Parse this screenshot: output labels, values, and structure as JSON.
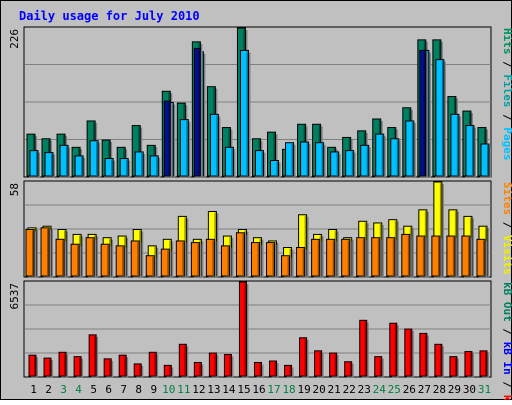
{
  "chart_data": {
    "type": "bar",
    "title": "Daily usage for July 2010",
    "categories": [
      "1",
      "2",
      "3",
      "4",
      "5",
      "6",
      "7",
      "8",
      "9",
      "10",
      "11",
      "12",
      "13",
      "14",
      "15",
      "16",
      "17",
      "18",
      "19",
      "20",
      "21",
      "22",
      "23",
      "24",
      "25",
      "26",
      "27",
      "28",
      "29",
      "30",
      "31"
    ],
    "weekend_days": [
      "3",
      "4",
      "10",
      "11",
      "17",
      "18",
      "24",
      "25",
      "31"
    ],
    "panels": [
      {
        "id": "hits",
        "ylim": [
          0,
          226
        ],
        "ymax_label": "226",
        "axis_labels": [
          {
            "text": "Pages",
            "color": "#00c0ff"
          },
          {
            "text": "Files",
            "color": "#00a0a0"
          },
          {
            "text": "Hits",
            "color": "#009060"
          }
        ],
        "series": [
          {
            "name": "Hits",
            "color": "#008060",
            "values": [
              65,
              58,
              65,
              45,
              85,
              56,
              45,
              78,
              48,
              130,
              112,
              205,
              137,
              75,
              226,
              58,
              68,
              42,
              80,
              80,
              45,
              60,
              70,
              88,
              75,
              105,
              208,
              208,
              122,
              100,
              75
            ]
          },
          {
            "name": "Files",
            "color": "#00c0ff",
            "values": [
              40,
              37,
              48,
              32,
              55,
              28,
              28,
              38,
              32,
              113,
              87,
              190,
              95,
              45,
              192,
              40,
              25,
              52,
              53,
              52,
              38,
              40,
              48,
              65,
              58,
              85,
              192,
              178,
              95,
              78,
              50
            ]
          },
          {
            "name": "Pages",
            "color": "#001090",
            "values": [
              0,
              0,
              0,
              0,
              0,
              0,
              0,
              0,
              0,
              115,
              0,
              195,
              0,
              0,
              0,
              0,
              0,
              0,
              0,
              0,
              0,
              0,
              0,
              0,
              0,
              0,
              192,
              0,
              0,
              0,
              0
            ]
          }
        ]
      },
      {
        "id": "visits",
        "ylim": [
          0,
          58
        ],
        "ymax_label": "58",
        "axis_labels": [
          {
            "text": "Visits",
            "color": "#f0f000"
          },
          {
            "text": "Sites",
            "color": "#ff8000"
          }
        ],
        "series": [
          {
            "name": "Visits",
            "color": "#ffff00",
            "values": [
              30,
              31,
              29,
              26,
              26,
              24,
              25,
              29,
              19,
              23,
              37,
              23,
              40,
              25,
              29,
              24,
              22,
              18,
              38,
              26,
              29,
              24,
              34,
              33,
              35,
              31,
              41,
              58,
              41,
              37,
              31
            ]
          },
          {
            "name": "Sites",
            "color": "#ff8000",
            "values": [
              29,
              30,
              23,
              20,
              24,
              20,
              19,
              22,
              13,
              17,
              22,
              21,
              23,
              19,
              27,
              21,
              21,
              13,
              18,
              23,
              23,
              23,
              24,
              24,
              24,
              26,
              25,
              25,
              25,
              25,
              23
            ]
          }
        ]
      },
      {
        "id": "kbytes",
        "ylim": [
          0,
          6537
        ],
        "ymax_label": "6537",
        "axis_labels": [
          {
            "text": "kB F",
            "color": "#ff0000"
          },
          {
            "text": "kB In",
            "color": "#0000ff"
          },
          {
            "text": "kB Out",
            "color": "#008060"
          }
        ],
        "series": [
          {
            "name": "kB F",
            "color": "#ff0000",
            "values": [
              1500,
              1300,
              1700,
              1400,
              2900,
              1250,
              1500,
              900,
              1700,
              800,
              2250,
              1000,
              1650,
              1550,
              6537,
              1000,
              1100,
              800,
              2700,
              1800,
              1650,
              1050,
              3900,
              1400,
              3700,
              3300,
              3000,
              2250,
              1400,
              1750,
              1800
            ]
          }
        ]
      }
    ]
  }
}
